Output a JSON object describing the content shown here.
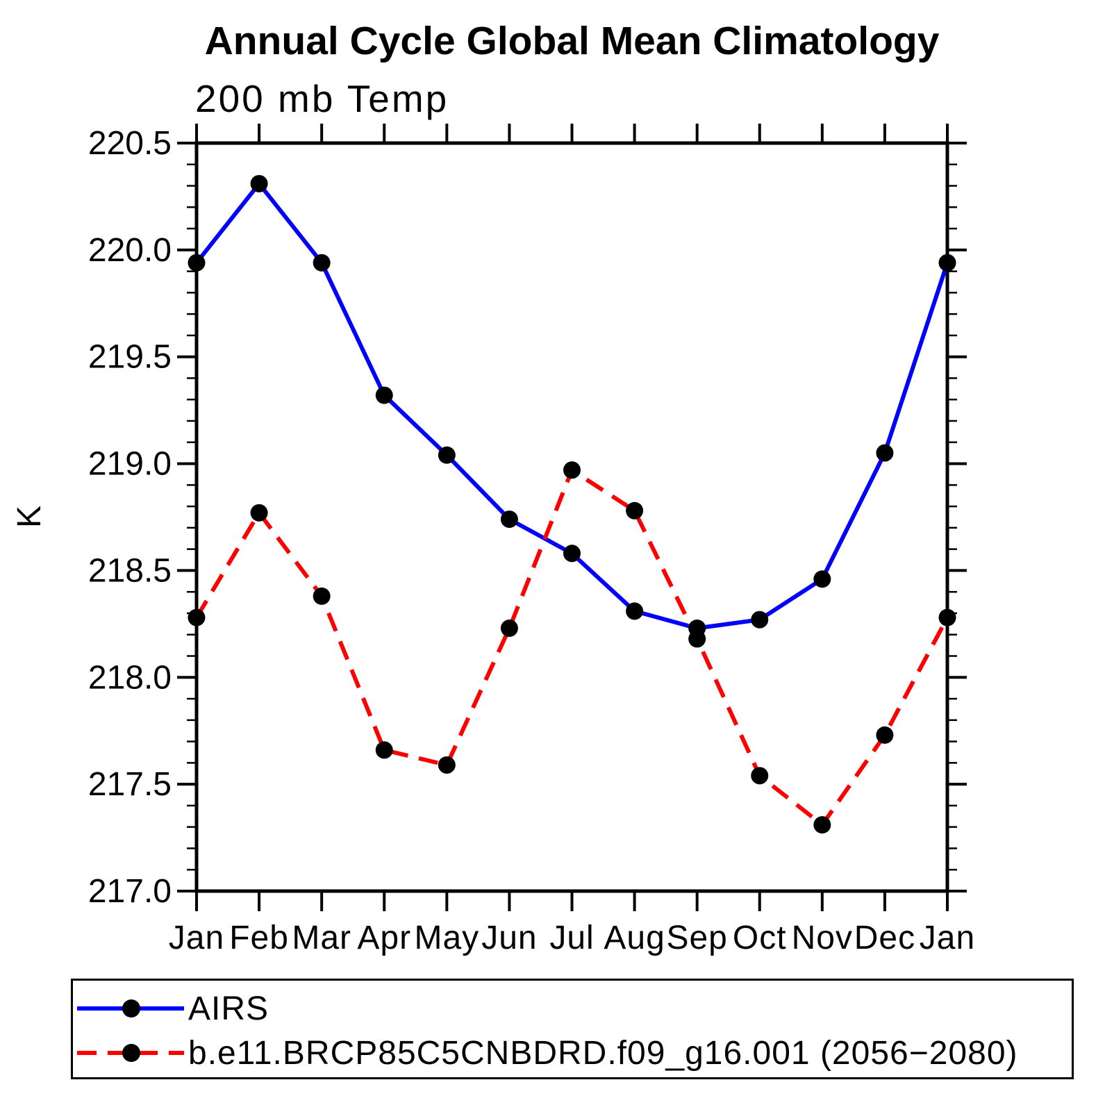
{
  "title": "Annual Cycle Global Mean Climatology",
  "subtitle": "200 mb Temp",
  "y_axis": {
    "label": "K",
    "min": 217.0,
    "max": 220.5,
    "major_step": 0.5,
    "minor_step": 0.1,
    "tick_labels": [
      "220.5",
      "220.0",
      "219.5",
      "219.0",
      "218.5",
      "218.0",
      "217.5",
      "217.0"
    ]
  },
  "x_axis": {
    "tick_labels": [
      "Jan",
      "Feb",
      "Mar",
      "Apr",
      "May",
      "Jun",
      "Jul",
      "Aug",
      "Sep",
      "Oct",
      "Nov",
      "Dec",
      "Jan"
    ]
  },
  "legend": [
    {
      "label": "AIRS",
      "color": "#0000ff",
      "style": "solid",
      "marker": "circle"
    },
    {
      "label": "b.e11.BRCP85C5CNBDRD.f09_g16.001 (2056−2080)",
      "color": "#ff0000",
      "style": "dashed",
      "marker": "circle"
    }
  ],
  "chart_data": {
    "type": "line",
    "title": "Annual Cycle Global Mean Climatology",
    "subtitle": "200 mb Temp",
    "xlabel": "",
    "ylabel": "K",
    "ylim": [
      217.0,
      220.5
    ],
    "y_major_step": 0.5,
    "y_minor_step": 0.1,
    "grid": false,
    "legend_position": "bottom",
    "x": [
      "Jan",
      "Feb",
      "Mar",
      "Apr",
      "May",
      "Jun",
      "Jul",
      "Aug",
      "Sep",
      "Oct",
      "Nov",
      "Dec",
      "Jan"
    ],
    "series": [
      {
        "name": "AIRS",
        "color": "#0000ff",
        "line_style": "solid",
        "marker": "circle",
        "marker_color": "#000000",
        "values": [
          219.94,
          220.31,
          219.94,
          219.32,
          219.04,
          218.74,
          218.58,
          218.31,
          218.23,
          218.27,
          218.46,
          219.05,
          219.94
        ]
      },
      {
        "name": "b.e11.BRCP85C5CNBDRD.f09_g16.001 (2056−2080)",
        "color": "#ff0000",
        "line_style": "dashed",
        "marker": "circle",
        "marker_color": "#000000",
        "values": [
          218.28,
          218.77,
          218.38,
          217.66,
          217.59,
          218.23,
          218.97,
          218.78,
          218.18,
          217.54,
          217.31,
          217.73,
          218.28
        ]
      }
    ]
  }
}
